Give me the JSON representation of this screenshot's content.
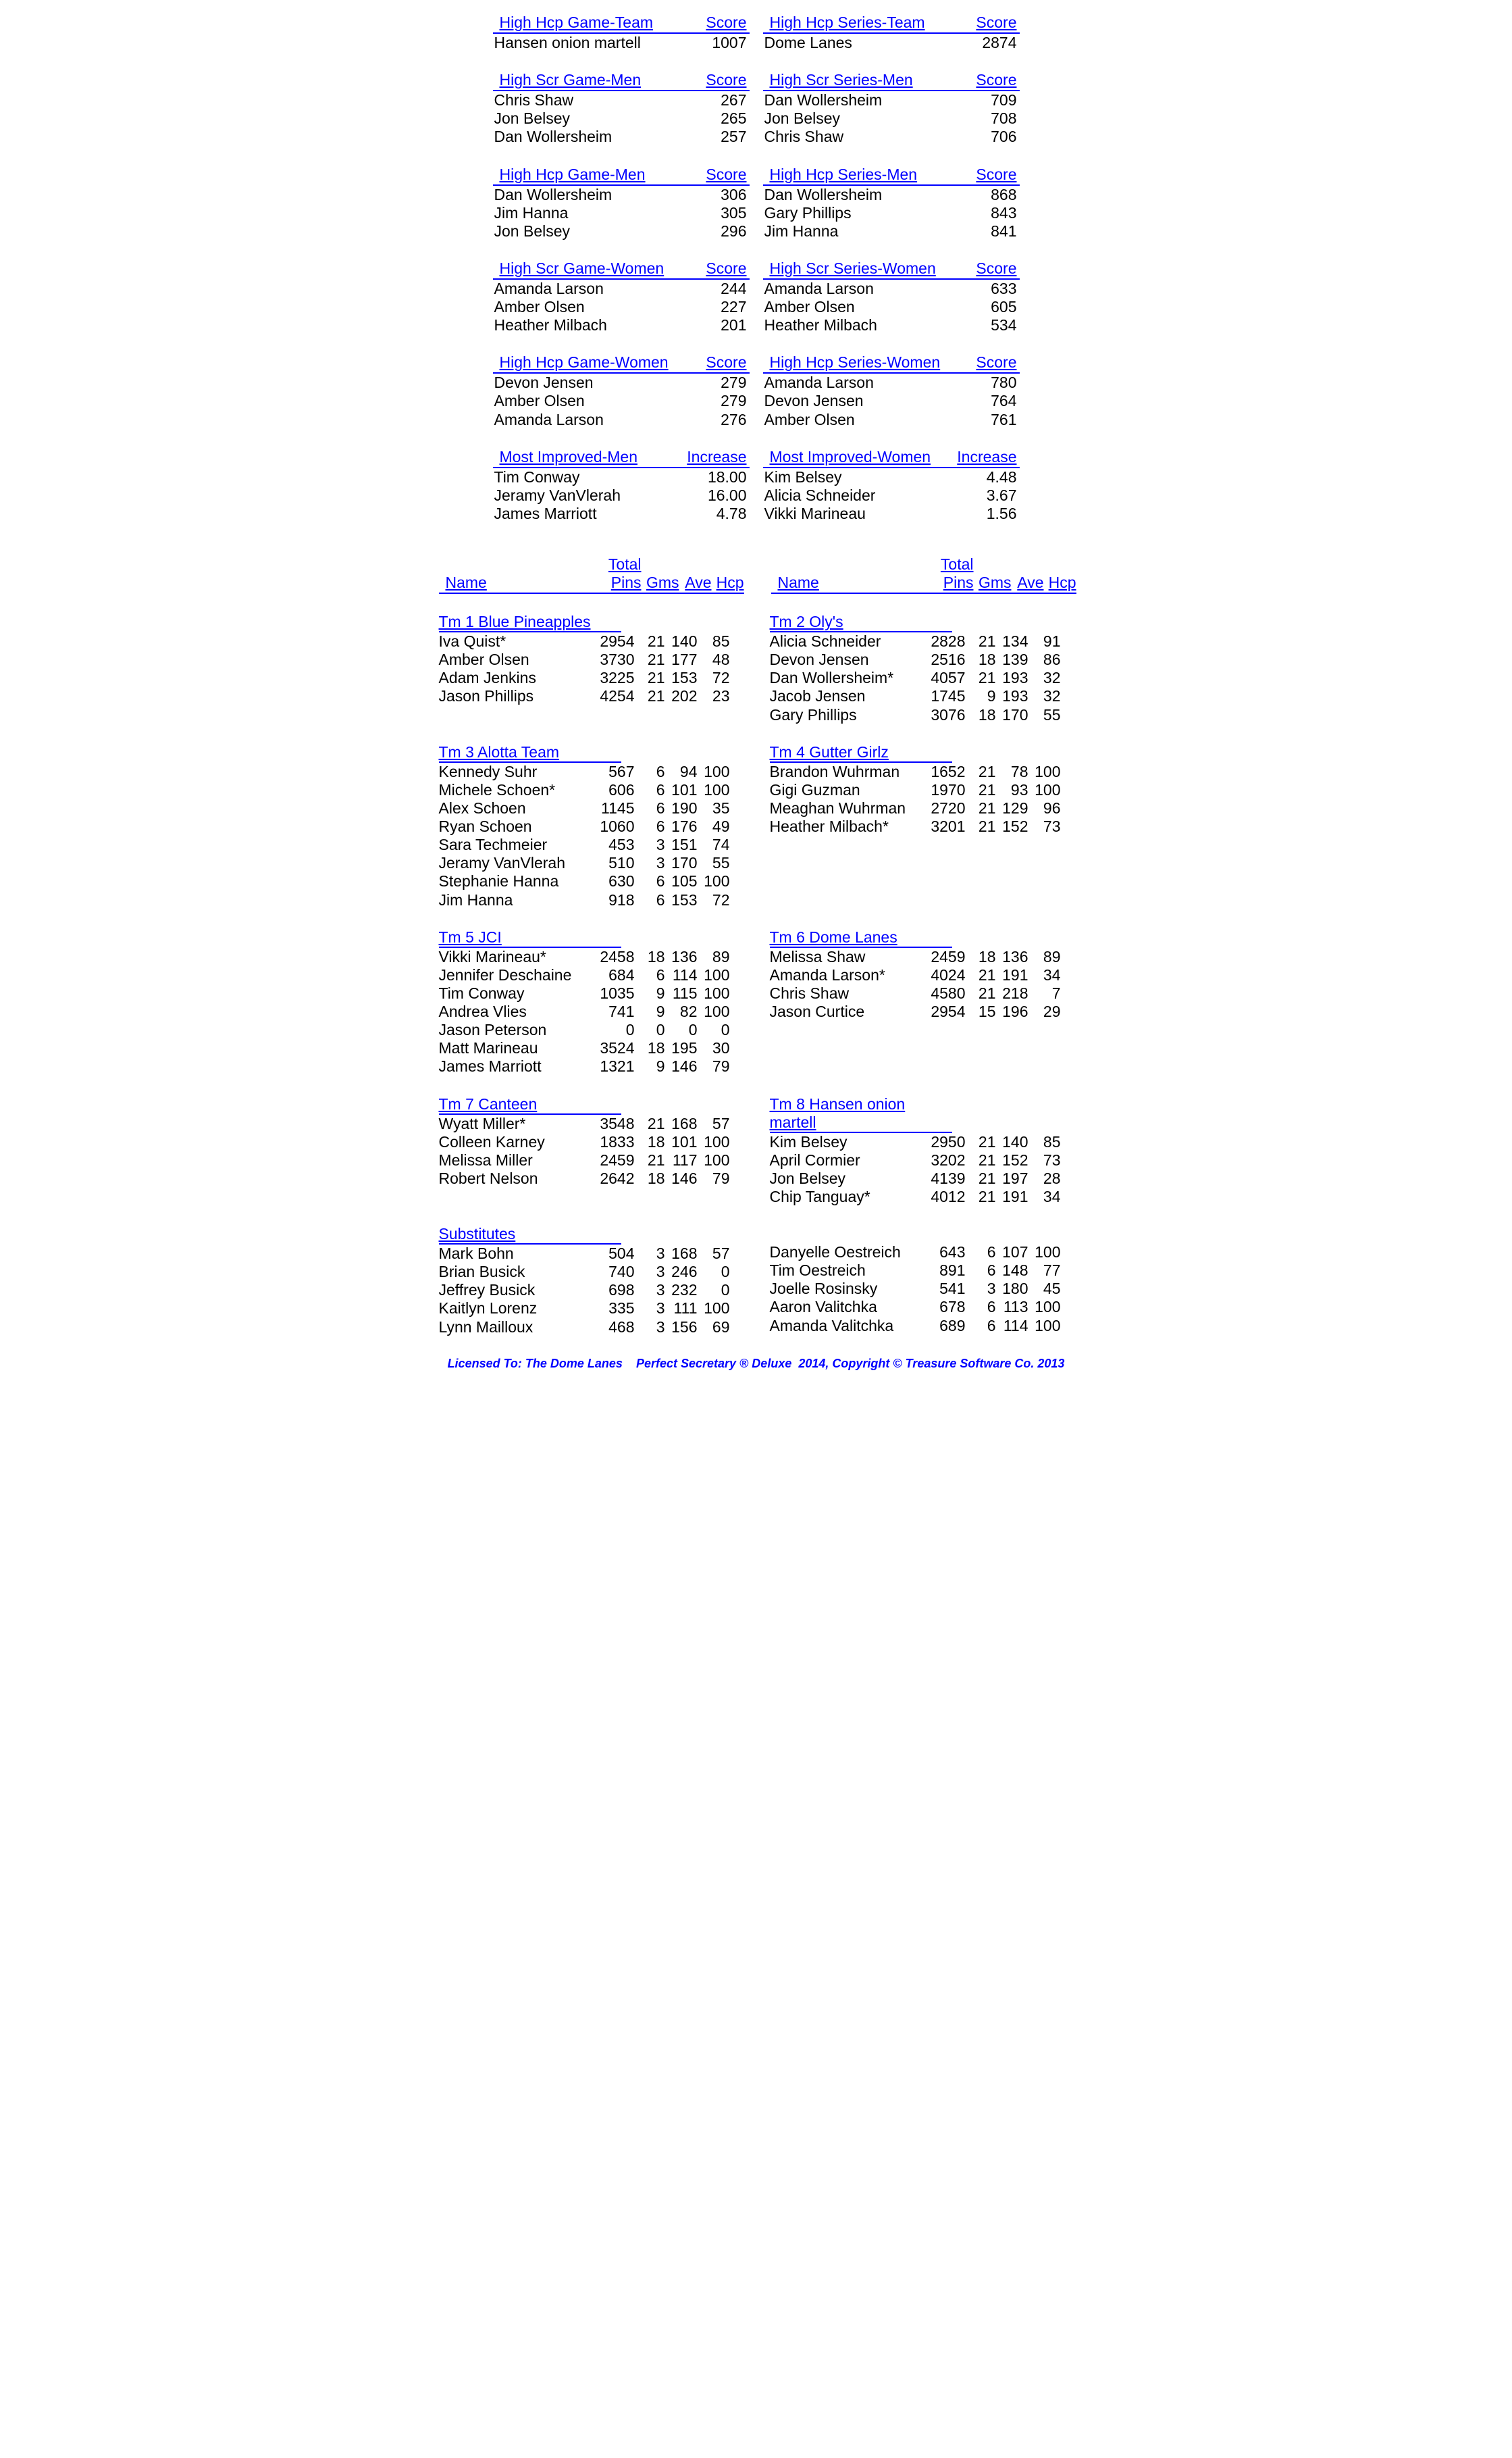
{
  "labels": {
    "score": "Score",
    "increase": "Increase",
    "name": "Name",
    "total": "Total",
    "pins": "Pins",
    "gms": "Gms",
    "ave": "Ave",
    "hcp": "Hcp"
  },
  "stat_blocks": [
    {
      "left": {
        "title": "High Hcp Game-Team",
        "score_label": "Score",
        "rows": [
          [
            "Hansen onion martell",
            "1007"
          ]
        ]
      },
      "right": {
        "title": "High Hcp Series-Team",
        "score_label": "Score",
        "rows": [
          [
            "Dome Lanes",
            "2874"
          ]
        ]
      }
    },
    {
      "left": {
        "title": "High Scr Game-Men",
        "score_label": "Score",
        "rows": [
          [
            "Chris Shaw",
            "267"
          ],
          [
            "Jon Belsey",
            "265"
          ],
          [
            "Dan Wollersheim",
            "257"
          ]
        ]
      },
      "right": {
        "title": "High Scr Series-Men",
        "score_label": "Score",
        "rows": [
          [
            "Dan Wollersheim",
            "709"
          ],
          [
            "Jon Belsey",
            "708"
          ],
          [
            "Chris Shaw",
            "706"
          ]
        ]
      }
    },
    {
      "left": {
        "title": "High Hcp Game-Men",
        "score_label": "Score",
        "rows": [
          [
            "Dan Wollersheim",
            "306"
          ],
          [
            "Jim Hanna",
            "305"
          ],
          [
            "Jon Belsey",
            "296"
          ]
        ]
      },
      "right": {
        "title": "High Hcp Series-Men",
        "score_label": "Score",
        "rows": [
          [
            "Dan Wollersheim",
            "868"
          ],
          [
            "Gary Phillips",
            "843"
          ],
          [
            "Jim Hanna",
            "841"
          ]
        ]
      }
    },
    {
      "left": {
        "title": "High Scr Game-Women",
        "score_label": "Score",
        "rows": [
          [
            "Amanda Larson",
            "244"
          ],
          [
            "Amber Olsen",
            "227"
          ],
          [
            "Heather Milbach",
            "201"
          ]
        ]
      },
      "right": {
        "title": "High Scr Series-Women",
        "score_label": "Score",
        "rows": [
          [
            "Amanda Larson",
            "633"
          ],
          [
            "Amber Olsen",
            "605"
          ],
          [
            "Heather Milbach",
            "534"
          ]
        ]
      }
    },
    {
      "left": {
        "title": "High Hcp Game-Women",
        "score_label": "Score",
        "rows": [
          [
            "Devon Jensen",
            "279"
          ],
          [
            "Amber Olsen",
            "279"
          ],
          [
            "Amanda Larson",
            "276"
          ]
        ]
      },
      "right": {
        "title": "High Hcp Series-Women",
        "score_label": "Score",
        "rows": [
          [
            "Amanda Larson",
            "780"
          ],
          [
            "Devon Jensen",
            "764"
          ],
          [
            "Amber Olsen",
            "761"
          ]
        ]
      }
    },
    {
      "left": {
        "title": "Most Improved-Men",
        "score_label": "Increase",
        "rows": [
          [
            "Tim Conway",
            "18.00"
          ],
          [
            "Jeramy VanVlerah",
            "16.00"
          ],
          [
            "James Marriott",
            "4.78"
          ]
        ]
      },
      "right": {
        "title": "Most Improved-Women",
        "score_label": "Increase",
        "rows": [
          [
            "Kim Belsey",
            "4.48"
          ],
          [
            "Alicia Schneider",
            "3.67"
          ],
          [
            "Vikki Marineau",
            "1.56"
          ]
        ]
      }
    }
  ],
  "team_pairs": [
    {
      "left": {
        "name": "Tm 1 Blue Pineapples",
        "players": [
          [
            "Iva Quist*",
            "2954",
            "21",
            "140",
            "85"
          ],
          [
            "Amber Olsen",
            "3730",
            "21",
            "177",
            "48"
          ],
          [
            "Adam Jenkins",
            "3225",
            "21",
            "153",
            "72"
          ],
          [
            "Jason Phillips",
            "4254",
            "21",
            "202",
            "23"
          ]
        ]
      },
      "right": {
        "name": "Tm 2 Oly's",
        "players": [
          [
            "Alicia Schneider",
            "2828",
            "21",
            "134",
            "91"
          ],
          [
            "Devon Jensen",
            "2516",
            "18",
            "139",
            "86"
          ],
          [
            "Dan Wollersheim*",
            "4057",
            "21",
            "193",
            "32"
          ],
          [
            "Jacob Jensen",
            "1745",
            "9",
            "193",
            "32"
          ],
          [
            "Gary Phillips",
            "3076",
            "18",
            "170",
            "55"
          ]
        ]
      }
    },
    {
      "left": {
        "name": "Tm 3 Alotta Team",
        "players": [
          [
            "Kennedy Suhr",
            "567",
            "6",
            "94",
            "100"
          ],
          [
            "Michele Schoen*",
            "606",
            "6",
            "101",
            "100"
          ],
          [
            "Alex Schoen",
            "1145",
            "6",
            "190",
            "35"
          ],
          [
            "Ryan Schoen",
            "1060",
            "6",
            "176",
            "49"
          ],
          [
            "Sara Techmeier",
            "453",
            "3",
            "151",
            "74"
          ],
          [
            "Jeramy VanVlerah",
            "510",
            "3",
            "170",
            "55"
          ],
          [
            "Stephanie Hanna",
            "630",
            "6",
            "105",
            "100"
          ],
          [
            "Jim Hanna",
            "918",
            "6",
            "153",
            "72"
          ]
        ]
      },
      "right": {
        "name": "Tm 4 Gutter Girlz",
        "players": [
          [
            "Brandon Wuhrman",
            "1652",
            "21",
            "78",
            "100"
          ],
          [
            "Gigi Guzman",
            "1970",
            "21",
            "93",
            "100"
          ],
          [
            "Meaghan Wuhrman",
            "2720",
            "21",
            "129",
            "96"
          ],
          [
            "Heather Milbach*",
            "3201",
            "21",
            "152",
            "73"
          ]
        ]
      }
    },
    {
      "left": {
        "name": "Tm 5 JCI",
        "players": [
          [
            "Vikki Marineau*",
            "2458",
            "18",
            "136",
            "89"
          ],
          [
            "Jennifer Deschaine",
            "684",
            "6",
            "114",
            "100"
          ],
          [
            "Tim Conway",
            "1035",
            "9",
            "115",
            "100"
          ],
          [
            "Andrea Vlies",
            "741",
            "9",
            "82",
            "100"
          ],
          [
            "Jason Peterson",
            "0",
            "0",
            "0",
            "0"
          ],
          [
            "Matt Marineau",
            "3524",
            "18",
            "195",
            "30"
          ],
          [
            "James Marriott",
            "1321",
            "9",
            "146",
            "79"
          ]
        ]
      },
      "right": {
        "name": "Tm 6 Dome Lanes",
        "players": [
          [
            "Melissa Shaw",
            "2459",
            "18",
            "136",
            "89"
          ],
          [
            "Amanda Larson*",
            "4024",
            "21",
            "191",
            "34"
          ],
          [
            "Chris Shaw",
            "4580",
            "21",
            "218",
            "7"
          ],
          [
            "Jason Curtice",
            "2954",
            "15",
            "196",
            "29"
          ]
        ]
      }
    },
    {
      "left": {
        "name": "Tm 7 Canteen",
        "players": [
          [
            "Wyatt Miller*",
            "3548",
            "21",
            "168",
            "57"
          ],
          [
            "Colleen Karney",
            "1833",
            "18",
            "101",
            "100"
          ],
          [
            "Melissa Miller",
            "2459",
            "21",
            "117",
            "100"
          ],
          [
            "Robert Nelson",
            "2642",
            "18",
            "146",
            "79"
          ]
        ]
      },
      "right": {
        "name": "Tm 8 Hansen onion martell",
        "players": [
          [
            "Kim Belsey",
            "2950",
            "21",
            "140",
            "85"
          ],
          [
            "April Cormier",
            "3202",
            "21",
            "152",
            "73"
          ],
          [
            "Jon Belsey",
            "4139",
            "21",
            "197",
            "28"
          ],
          [
            "Chip Tanguay*",
            "4012",
            "21",
            "191",
            "34"
          ]
        ]
      }
    }
  ],
  "subs": {
    "name": "Substitutes",
    "left": [
      [
        "Mark Bohn",
        "504",
        "3",
        "168",
        "57"
      ],
      [
        "Brian Busick",
        "740",
        "3",
        "246",
        "0"
      ],
      [
        "Jeffrey Busick",
        "698",
        "3",
        "232",
        "0"
      ],
      [
        "Kaitlyn Lorenz",
        "335",
        "3",
        "111",
        "100"
      ],
      [
        "Lynn Mailloux",
        "468",
        "3",
        "156",
        "69"
      ]
    ],
    "right": [
      [
        "Danyelle Oestreich",
        "643",
        "6",
        "107",
        "100"
      ],
      [
        "Tim Oestreich",
        "891",
        "6",
        "148",
        "77"
      ],
      [
        "Joelle Rosinsky",
        "541",
        "3",
        "180",
        "45"
      ],
      [
        "Aaron Valitchka",
        "678",
        "6",
        "113",
        "100"
      ],
      [
        "Amanda Valitchka",
        "689",
        "6",
        "114",
        "100"
      ]
    ]
  },
  "footer": "Licensed To: The Dome Lanes    Perfect Secretary ® Deluxe  2014, Copyright © Treasure Software Co. 2013"
}
